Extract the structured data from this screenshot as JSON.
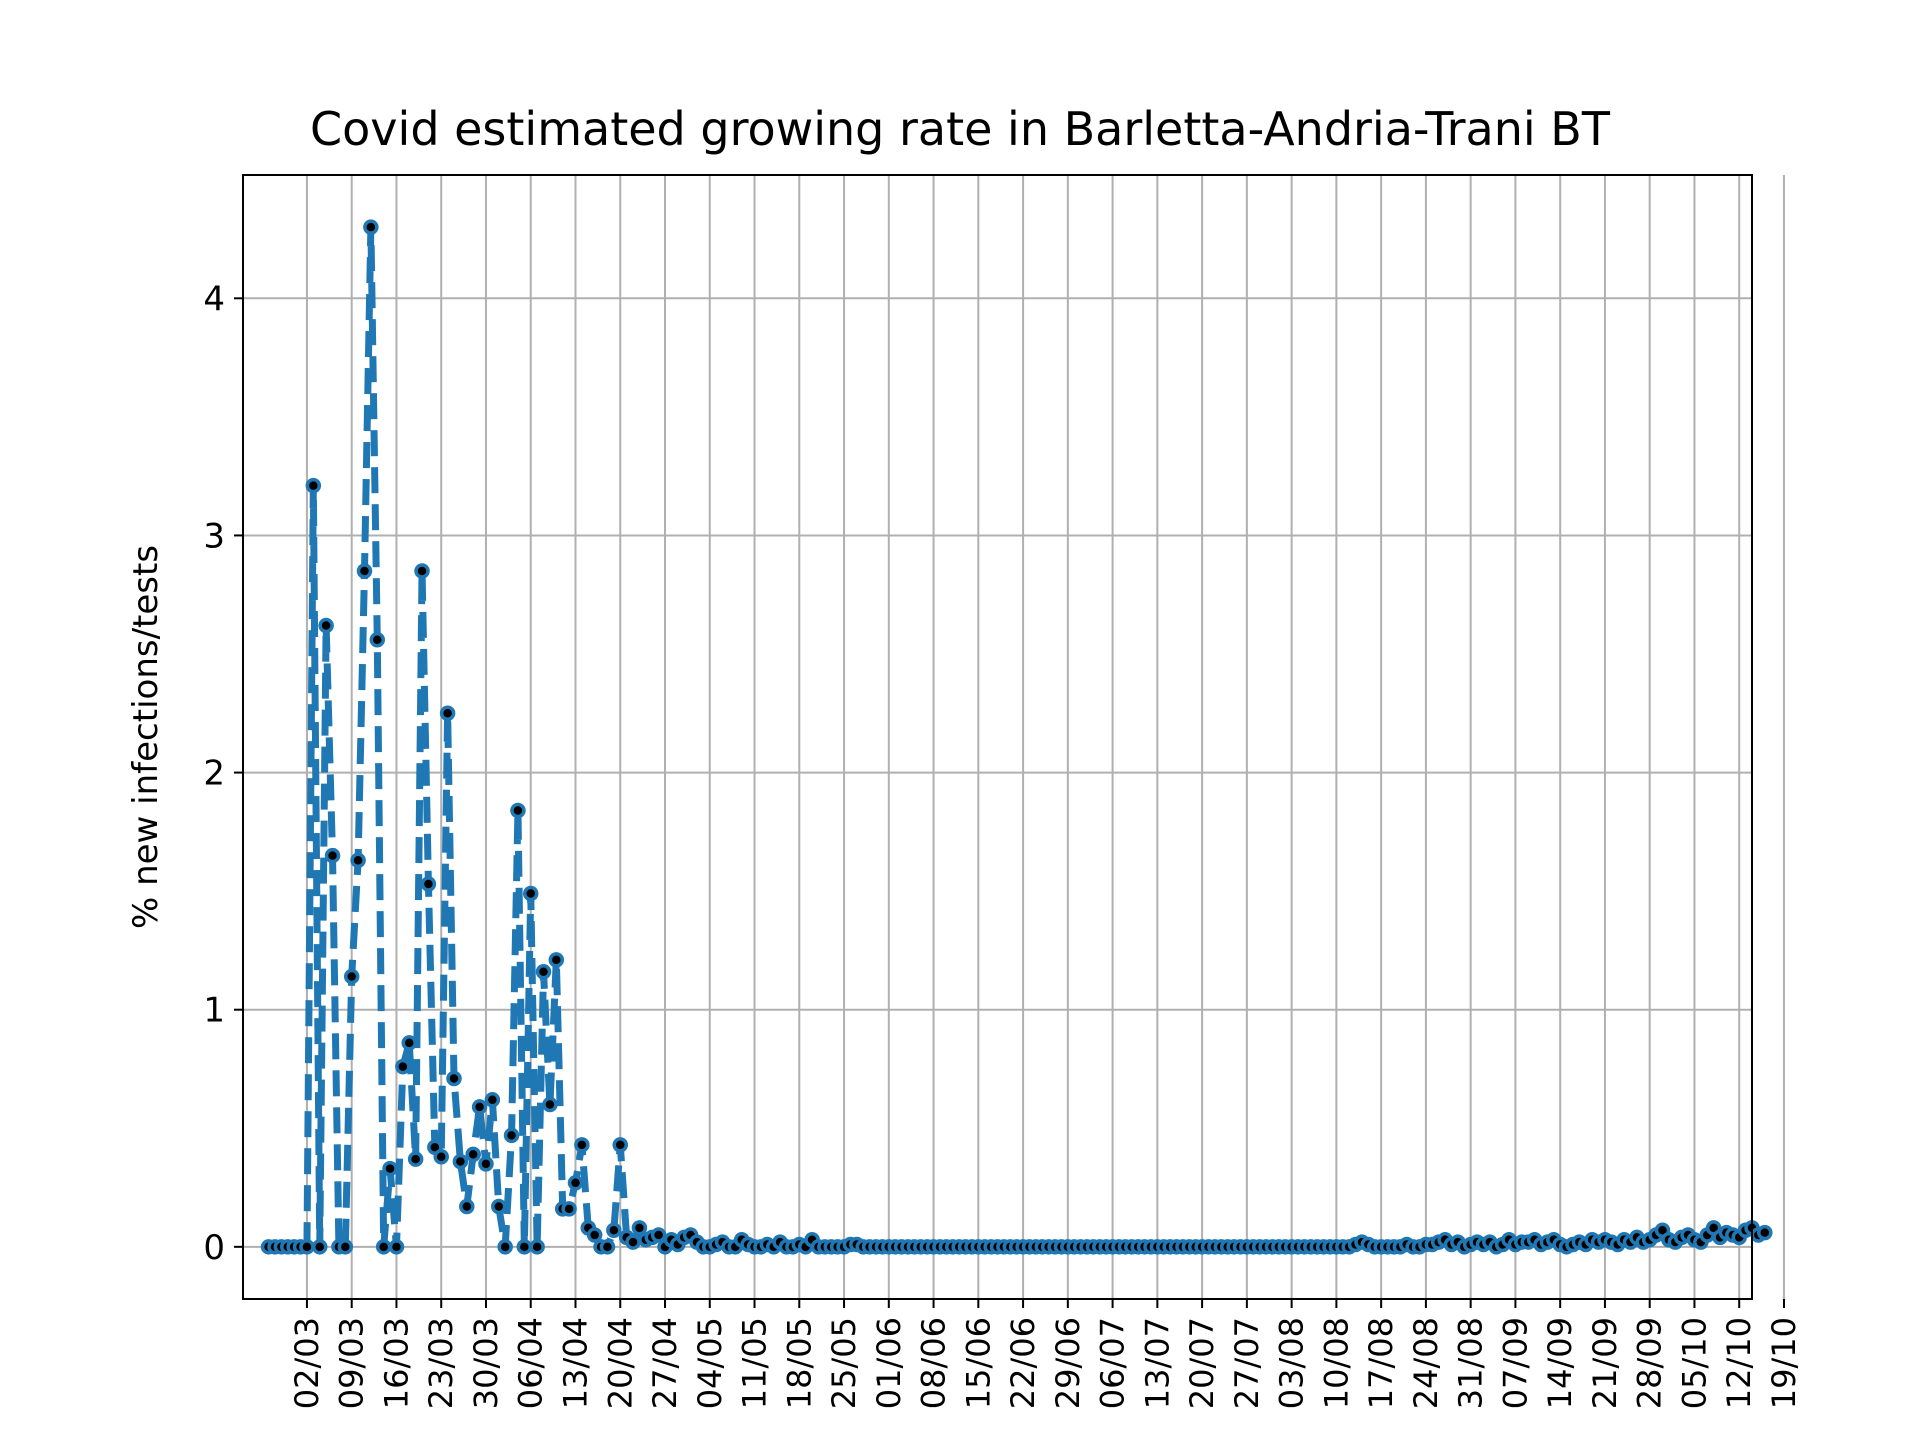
{
  "chart_data": {
    "type": "line",
    "title": "Covid estimated growing rate in Barletta-Andria-Trani BT",
    "xlabel": "",
    "ylabel": "% new infections/tests",
    "ylim": [
      -0.22,
      4.52
    ],
    "yticks": [
      0,
      1,
      2,
      3,
      4
    ],
    "xlim": [
      -4,
      228
    ],
    "x_tick_labels": [
      {
        "day": 6,
        "label": "02/03"
      },
      {
        "day": 13,
        "label": "09/03"
      },
      {
        "day": 20,
        "label": "16/03"
      },
      {
        "day": 27,
        "label": "23/03"
      },
      {
        "day": 34,
        "label": "30/03"
      },
      {
        "day": 41,
        "label": "06/04"
      },
      {
        "day": 48,
        "label": "13/04"
      },
      {
        "day": 55,
        "label": "20/04"
      },
      {
        "day": 62,
        "label": "27/04"
      },
      {
        "day": 69,
        "label": "04/05"
      },
      {
        "day": 76,
        "label": "11/05"
      },
      {
        "day": 83,
        "label": "18/05"
      },
      {
        "day": 90,
        "label": "25/05"
      },
      {
        "day": 97,
        "label": "01/06"
      },
      {
        "day": 104,
        "label": "08/06"
      },
      {
        "day": 111,
        "label": "15/06"
      },
      {
        "day": 118,
        "label": "22/06"
      },
      {
        "day": 125,
        "label": "29/06"
      },
      {
        "day": 132,
        "label": "06/07"
      },
      {
        "day": 139,
        "label": "13/07"
      },
      {
        "day": 146,
        "label": "20/07"
      },
      {
        "day": 153,
        "label": "27/07"
      },
      {
        "day": 160,
        "label": "03/08"
      },
      {
        "day": 167,
        "label": "10/08"
      },
      {
        "day": 174,
        "label": "17/08"
      },
      {
        "day": 181,
        "label": "24/08"
      },
      {
        "day": 188,
        "label": "31/08"
      },
      {
        "day": 195,
        "label": "07/09"
      },
      {
        "day": 202,
        "label": "14/09"
      },
      {
        "day": 209,
        "label": "21/09"
      },
      {
        "day": 216,
        "label": "28/09"
      },
      {
        "day": 223,
        "label": "05/10"
      },
      {
        "day": 230,
        "label": "12/10"
      },
      {
        "day": 237,
        "label": "19/10"
      }
    ],
    "series": [
      {
        "color": "#1f77b4",
        "marker_color": "#000000",
        "linestyle": "dashed",
        "values": [
          0,
          0,
          0,
          0,
          0,
          0,
          0,
          3.21,
          0,
          2.62,
          1.65,
          0,
          0,
          1.14,
          1.63,
          2.85,
          4.3,
          2.56,
          0,
          0.33,
          0,
          0.76,
          0.86,
          0.37,
          2.85,
          1.53,
          0.42,
          0.38,
          2.25,
          0.71,
          0.36,
          0.17,
          0.39,
          0.59,
          0.35,
          0.62,
          0.17,
          0,
          0.47,
          1.84,
          0,
          1.49,
          0,
          1.16,
          0.6,
          1.21,
          0.16,
          0.16,
          0.27,
          0.43,
          0.08,
          0.05,
          0,
          0,
          0.07,
          0.43,
          0.04,
          0.02,
          0.08,
          0.03,
          0.04,
          0.05,
          0,
          0.03,
          0.01,
          0.04,
          0.05,
          0.02,
          0,
          0,
          0.01,
          0.02,
          0,
          0,
          0.03,
          0.01,
          0,
          0,
          0.01,
          0,
          0.02,
          0,
          0,
          0.01,
          0,
          0.03,
          0,
          0,
          0,
          0,
          0,
          0.01,
          0.01,
          0,
          0,
          0,
          0,
          0,
          0,
          0,
          0,
          0,
          0,
          0,
          0,
          0,
          0,
          0,
          0,
          0,
          0,
          0,
          0,
          0,
          0,
          0,
          0,
          0,
          0,
          0,
          0,
          0,
          0,
          0,
          0,
          0,
          0,
          0,
          0,
          0,
          0,
          0,
          0,
          0,
          0,
          0,
          0,
          0,
          0,
          0,
          0,
          0,
          0,
          0,
          0,
          0,
          0,
          0,
          0,
          0,
          0,
          0,
          0,
          0,
          0,
          0,
          0,
          0,
          0,
          0,
          0,
          0,
          0,
          0,
          0,
          0,
          0,
          0,
          0,
          0,
          0.01,
          0.02,
          0.01,
          0,
          0,
          0,
          0,
          0,
          0.01,
          0,
          0,
          0.01,
          0.01,
          0.02,
          0.03,
          0.01,
          0.02,
          0,
          0.01,
          0.02,
          0.01,
          0.02,
          0,
          0.01,
          0.03,
          0.01,
          0.02,
          0.02,
          0.03,
          0.01,
          0.02,
          0.03,
          0.01,
          0,
          0.01,
          0.02,
          0.01,
          0.03,
          0.02,
          0.03,
          0.02,
          0.01,
          0.03,
          0.02,
          0.04,
          0.02,
          0.03,
          0.05,
          0.07,
          0.03,
          0.02,
          0.04,
          0.05,
          0.03,
          0.02,
          0.05,
          0.08,
          0.04,
          0.06,
          0.05,
          0.04,
          0.07,
          0.08,
          0.05,
          0.06
        ]
      }
    ],
    "grid": true,
    "legend": false
  }
}
